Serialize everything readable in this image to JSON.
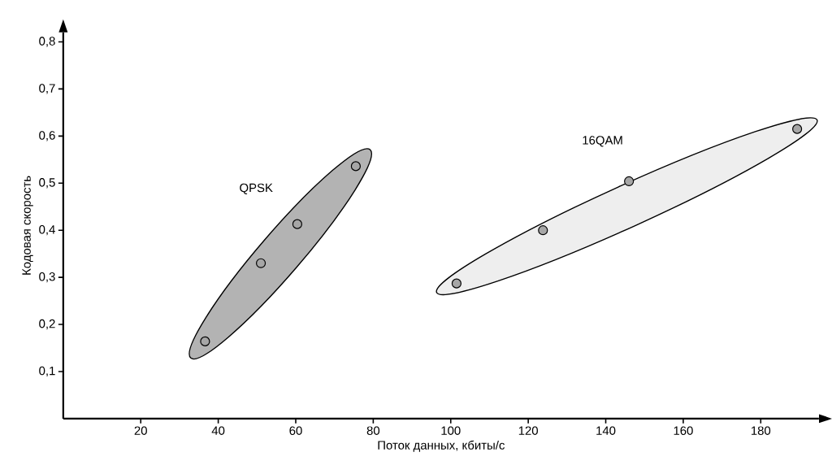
{
  "chart_data": {
    "type": "scatter",
    "xlabel": "Поток данных, кбиты/с",
    "ylabel": "Кодовая скорость",
    "xlim": [
      0,
      195
    ],
    "ylim": [
      0,
      0.82
    ],
    "xticks": [
      20,
      40,
      60,
      80,
      100,
      120,
      140,
      160,
      180
    ],
    "yticks": [
      {
        "value": 0.1,
        "label": "0,1"
      },
      {
        "value": 0.2,
        "label": "0,2"
      },
      {
        "value": 0.3,
        "label": "0,3"
      },
      {
        "value": 0.4,
        "label": "0,4"
      },
      {
        "value": 0.5,
        "label": "0,5"
      },
      {
        "value": 0.6,
        "label": "0,6"
      },
      {
        "value": 0.7,
        "label": "0,7"
      },
      {
        "value": 0.8,
        "label": "0,8"
      }
    ],
    "marker": "circle",
    "series": [
      {
        "name": "QPSK",
        "color": "#a6a6a6",
        "x": [
          36.6,
          51,
          60.4,
          75.5
        ],
        "values": [
          0.164,
          0.33,
          0.413,
          0.536
        ]
      },
      {
        "name": "16QAM",
        "color": "#a6a6a6",
        "x": [
          101.5,
          123.8,
          146,
          189.4
        ],
        "values": [
          0.287,
          0.4,
          0.504,
          0.615
        ]
      }
    ]
  }
}
